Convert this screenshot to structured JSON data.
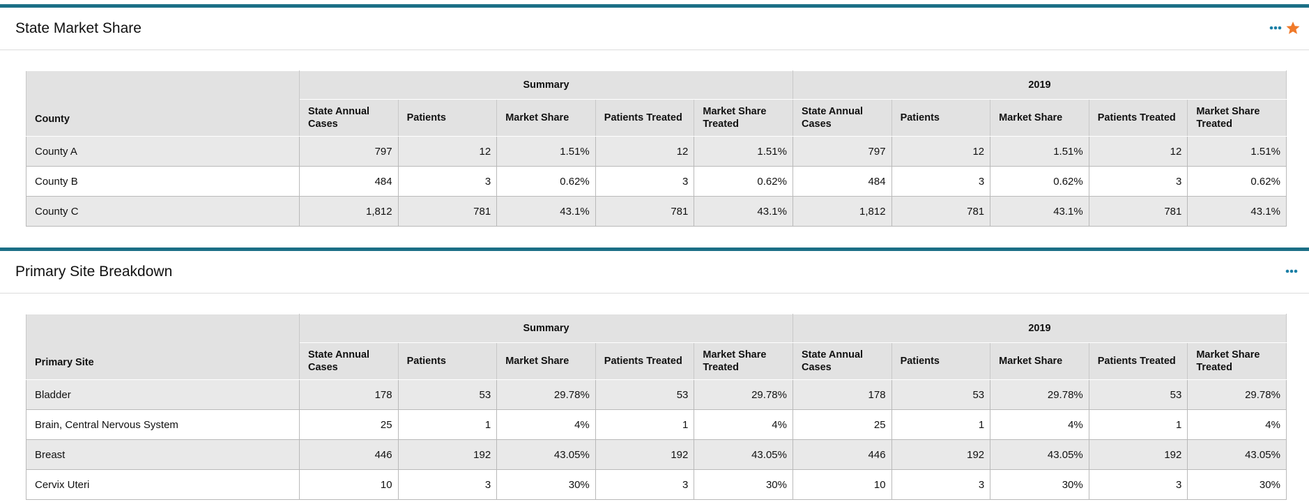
{
  "panels": [
    {
      "title": "State Market Share",
      "first_header": "County",
      "groups": [
        {
          "name": "Summary",
          "columns": [
            "State Annual Cases",
            "Patients",
            "Market Share",
            "Patients Treated",
            "Market Share Treated"
          ]
        },
        {
          "name": "2019",
          "columns": [
            "State Annual Cases",
            "Patients",
            "Market Share",
            "Patients Treated",
            "Market Share Treated"
          ]
        }
      ],
      "rows": [
        [
          "County A",
          "797",
          "12",
          "1.51%",
          "12",
          "1.51%",
          "797",
          "12",
          "1.51%",
          "12",
          "1.51%"
        ],
        [
          "County B",
          "484",
          "3",
          "0.62%",
          "3",
          "0.62%",
          "484",
          "3",
          "0.62%",
          "3",
          "0.62%"
        ],
        [
          "County C",
          "1,812",
          "781",
          "43.1%",
          "781",
          "43.1%",
          "1,812",
          "781",
          "43.1%",
          "781",
          "43.1%"
        ]
      ]
    },
    {
      "title": "Primary Site Breakdown",
      "first_header": "Primary Site",
      "groups": [
        {
          "name": "Summary",
          "columns": [
            "State Annual Cases",
            "Patients",
            "Market Share",
            "Patients Treated",
            "Market Share Treated"
          ]
        },
        {
          "name": "2019",
          "columns": [
            "State Annual Cases",
            "Patients",
            "Market Share",
            "Patients Treated",
            "Market Share Treated"
          ]
        }
      ],
      "rows": [
        [
          "Bladder",
          "178",
          "53",
          "29.78%",
          "53",
          "29.78%",
          "178",
          "53",
          "29.78%",
          "53",
          "29.78%"
        ],
        [
          "Brain, Central Nervous System",
          "25",
          "1",
          "4%",
          "1",
          "4%",
          "25",
          "1",
          "4%",
          "1",
          "4%"
        ],
        [
          "Breast",
          "446",
          "192",
          "43.05%",
          "192",
          "43.05%",
          "446",
          "192",
          "43.05%",
          "192",
          "43.05%"
        ],
        [
          "Cervix Uteri",
          "10",
          "3",
          "30%",
          "3",
          "30%",
          "10",
          "3",
          "30%",
          "3",
          "30%"
        ]
      ]
    }
  ]
}
